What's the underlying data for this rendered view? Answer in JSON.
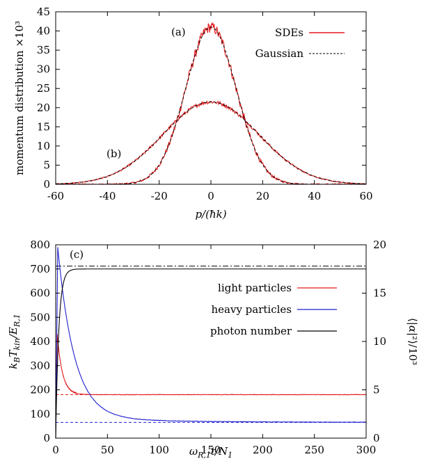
{
  "chart_data": [
    {
      "type": "line",
      "panel_labels": [
        "(a)",
        "(b)"
      ],
      "xlabel": "p/(ħk)",
      "ylabel": "momentum distribution ×10³",
      "xlim": [
        -60,
        60
      ],
      "ylim": [
        0,
        45
      ],
      "xticks": [
        -60,
        -40,
        -20,
        0,
        20,
        40,
        60
      ],
      "yticks": [
        0,
        5,
        10,
        15,
        20,
        25,
        30,
        35,
        40,
        45
      ],
      "grid": false,
      "legend_position": "top-right",
      "series": [
        {
          "name": "SDEs",
          "color": "#e41a1c",
          "style": "solid",
          "curve": "(a)",
          "gaussian": {
            "amplitude": 41.0,
            "sigma": 9.8
          },
          "noise": 1.4
        },
        {
          "name": "SDEs",
          "color": "#e41a1c",
          "style": "solid",
          "curve": "(b)",
          "gaussian": {
            "amplitude": 21.5,
            "sigma": 18.5
          },
          "noise": 0.5
        },
        {
          "name": "Gaussian",
          "color": "#000000",
          "style": "dashed",
          "curve": "(a)",
          "gaussian": {
            "amplitude": 41.0,
            "sigma": 9.8
          }
        },
        {
          "name": "Gaussian",
          "color": "#000000",
          "style": "dashed",
          "curve": "(b)",
          "gaussian": {
            "amplitude": 21.5,
            "sigma": 18.5
          }
        }
      ],
      "legend": [
        {
          "label": "SDEs",
          "color": "#e41a1c",
          "style": "solid"
        },
        {
          "label": "Gaussian",
          "color": "#000000",
          "style": "dashed"
        }
      ]
    },
    {
      "type": "line",
      "panel_label": "(c)",
      "xlabel": "ω_R,1 t/N_1",
      "ylabel_left": "k_B T_kin/E_R,1",
      "ylabel_right": "⟨|α|²⟩/10³",
      "xlim": [
        0,
        300
      ],
      "ylim_left": [
        0,
        800
      ],
      "ylim_right": [
        0,
        20
      ],
      "xticks": [
        0,
        50,
        100,
        150,
        200,
        250,
        300
      ],
      "yticks_left": [
        0,
        100,
        200,
        300,
        400,
        500,
        600,
        700,
        800
      ],
      "yticks_right": [
        0,
        5,
        10,
        15,
        20
      ],
      "grid": false,
      "legend_position": "right",
      "series": [
        {
          "name": "light particles",
          "color": "#e41a1c",
          "axis": "left",
          "peak": {
            "t": 1.5,
            "value": 430
          },
          "steady": 180,
          "tau": 5
        },
        {
          "name": "heavy particles",
          "color": "#1f1fd0",
          "axis": "left",
          "peak": {
            "t": 2,
            "value": 790
          },
          "steady": 65,
          "tau": 16
        },
        {
          "name": "photon number",
          "color": "#000000",
          "axis": "right",
          "steady": 17.5,
          "tau": 3
        }
      ],
      "reference_lines": [
        {
          "color": "#e41a1c",
          "style": "dashed",
          "axis": "left",
          "value": 180
        },
        {
          "color": "#1f1fd0",
          "style": "dashed",
          "axis": "left",
          "value": 65
        },
        {
          "color": "#000000",
          "style": "dash-dot",
          "axis": "right",
          "value": 17.8
        }
      ],
      "legend": [
        {
          "label": "light particles",
          "color": "#e41a1c"
        },
        {
          "label": "heavy particles",
          "color": "#1f1fd0"
        },
        {
          "label": "photon number",
          "color": "#000000"
        }
      ]
    }
  ]
}
